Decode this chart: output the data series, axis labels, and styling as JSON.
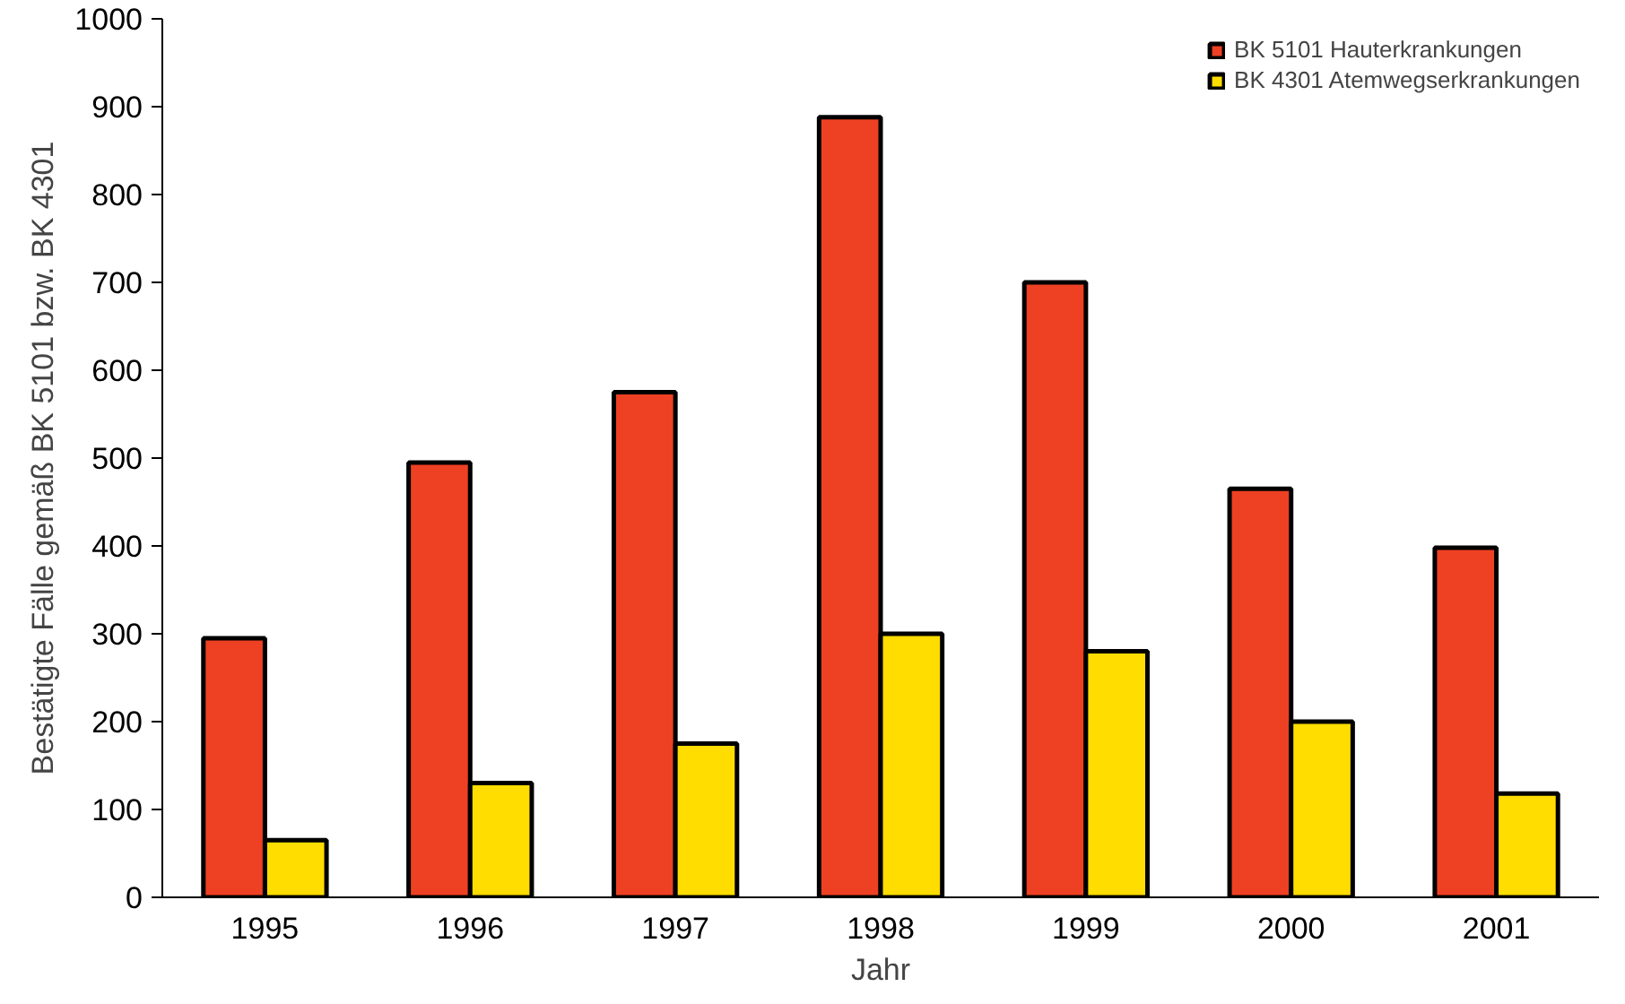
{
  "chart_data": {
    "type": "bar",
    "xlabel": "Jahr",
    "ylabel": "Bestätigte Fälle gemäß BK 5101 bzw. BK 4301",
    "categories": [
      "1995",
      "1996",
      "1997",
      "1998",
      "1999",
      "2000",
      "2001"
    ],
    "series": [
      {
        "name": "BK 5101 Hauterkrankungen",
        "color": "#ee4023",
        "values": [
          295,
          495,
          575,
          888,
          700,
          465,
          398
        ]
      },
      {
        "name": "BK 4301 Atemwegserkrankungen",
        "color": "#ffdd00",
        "values": [
          65,
          130,
          175,
          300,
          280,
          200,
          118
        ]
      }
    ],
    "ylim": [
      0,
      1000
    ],
    "yticks": [
      0,
      100,
      200,
      300,
      400,
      500,
      600,
      700,
      800,
      900,
      1000
    ],
    "grid": false,
    "legend": "top right"
  }
}
